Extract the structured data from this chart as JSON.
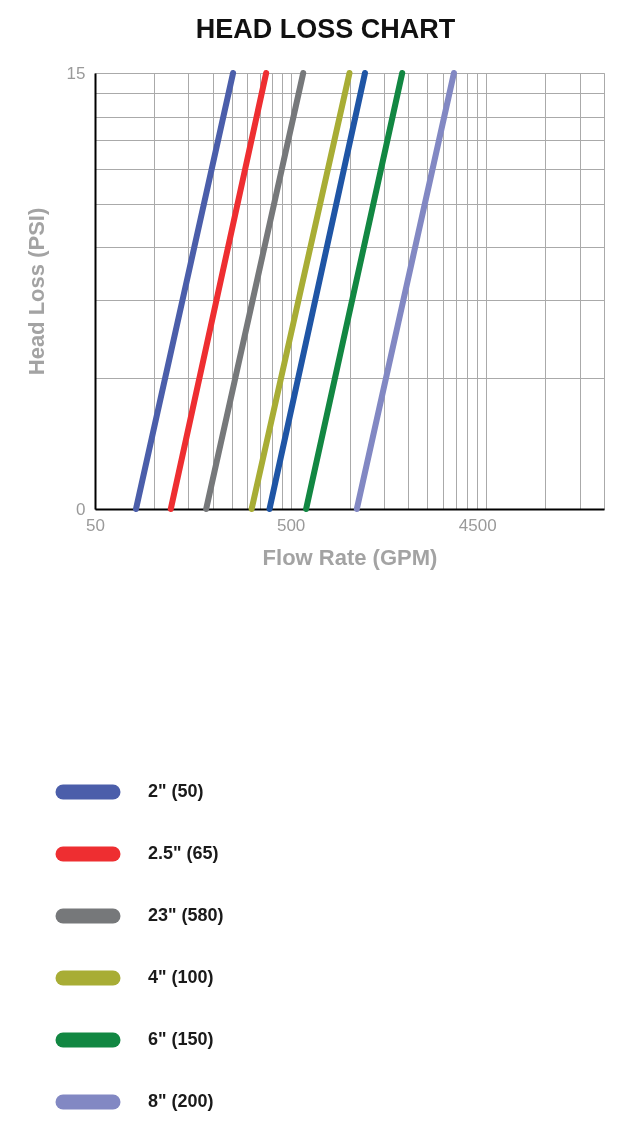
{
  "chart_data": {
    "type": "line",
    "title": "HEAD LOSS CHART",
    "xlabel": "Flow Rate (GPM)",
    "ylabel": "Head Loss (PSI)",
    "log": "x",
    "grid": true,
    "legend": "bottom",
    "line_style": "solid",
    "xlim": [
      50,
      20000
    ],
    "xticks": [
      50,
      {
        "value": 100,
        "label": null
      },
      {
        "value": 150,
        "label": null
      },
      {
        "value": 200,
        "label": null
      },
      {
        "value": 250,
        "label": null
      },
      {
        "value": 300,
        "label": null
      },
      {
        "value": 350,
        "label": null
      },
      {
        "value": 400,
        "label": null
      },
      {
        "value": 450,
        "label": null
      },
      500,
      {
        "value": 1000,
        "label": null
      },
      {
        "value": 1500,
        "label": null
      },
      {
        "value": 2000,
        "label": null
      },
      {
        "value": 2500,
        "label": null
      },
      {
        "value": 3000,
        "label": null
      },
      {
        "value": 3500,
        "label": null
      },
      {
        "value": 4000,
        "label": null
      },
      4500,
      {
        "value": 5000,
        "label": null
      },
      {
        "value": 10000,
        "label": null
      },
      {
        "value": 15000,
        "label": null
      }
    ],
    "ylim": [
      0,
      15
    ],
    "yticks": [
      0,
      {
        "value": 4.5,
        "label": null
      },
      {
        "value": 7.2,
        "label": null
      },
      {
        "value": 9,
        "label": null
      },
      {
        "value": 10.5,
        "label": null
      },
      {
        "value": 11.7,
        "label": null
      },
      {
        "value": 12.7,
        "label": null
      },
      {
        "value": 13.5,
        "label": null
      },
      {
        "value": 14.3,
        "label": null
      },
      15
    ],
    "series": [
      {
        "name": "2\" (50)",
        "color": "#4b5eaa",
        "x": [
          81,
          254
        ],
        "values": [
          0,
          15
        ]
      },
      {
        "name": "2.5\" (65)",
        "color": "#ee2e31",
        "x": [
          122,
          375
        ],
        "values": [
          0,
          15
        ]
      },
      {
        "name": "23\" (580)",
        "color": "#76787a",
        "x": [
          185,
          580
        ],
        "values": [
          0,
          15
        ]
      },
      {
        "name": "4\" (100)",
        "color": "#a8ad35",
        "x": [
          316,
          1000
        ],
        "values": [
          0,
          15
        ]
      },
      {
        "color": "#1f55a5",
        "x": [
          390,
          1200
        ],
        "values": [
          0,
          15
        ]
      },
      {
        "name": "6\" (150)",
        "color": "#128742",
        "x": [
          600,
          1860
        ],
        "values": [
          0,
          15
        ]
      },
      {
        "name": "8\" (200)",
        "color": "#8288c3",
        "x": [
          1090,
          3420
        ],
        "values": [
          0,
          15
        ]
      }
    ]
  }
}
